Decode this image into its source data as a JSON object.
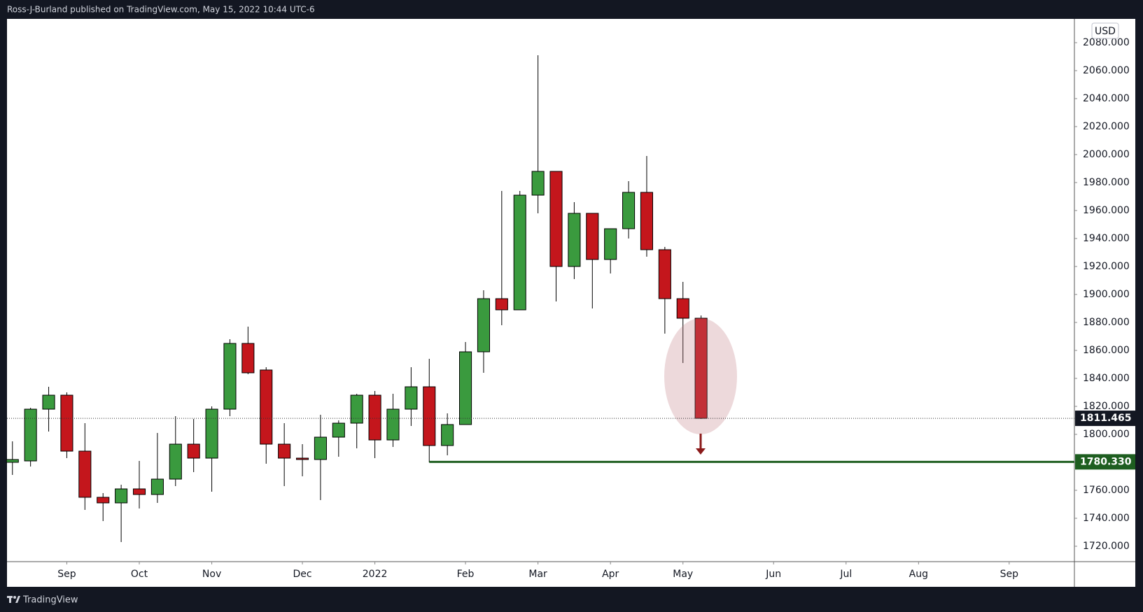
{
  "chart_data": {
    "type": "candlestick",
    "header": "Ross-J-Burland published on TradingView.com, May 15, 2022 10:44 UTC-6",
    "brand": "TradingView",
    "currency": "USD",
    "x": [
      0,
      1,
      2,
      3,
      4,
      5,
      6,
      7,
      8,
      9,
      10,
      11,
      12,
      13,
      14,
      15,
      16,
      17,
      18,
      19,
      20,
      21,
      22,
      23,
      24,
      25,
      26,
      27,
      28,
      29,
      30,
      31,
      32,
      33,
      34,
      35,
      36,
      37,
      38
    ],
    "open": [
      1780,
      1781,
      1818,
      1828,
      1788,
      1755,
      1751,
      1761,
      1757,
      1768,
      1793,
      1783,
      1818,
      1865,
      1846,
      1793,
      1783,
      1782,
      1798,
      1808,
      1828,
      1796,
      1818,
      1834,
      1792,
      1807,
      1859,
      1897,
      1889,
      1971,
      1988,
      1920,
      1958,
      1925,
      1947,
      1973,
      1932,
      1897,
      1883
    ],
    "high": [
      1795,
      1819,
      1834,
      1830,
      1808,
      1758,
      1764,
      1781,
      1801,
      1813,
      1811,
      1820,
      1868,
      1877,
      1848,
      1808,
      1793,
      1814,
      1810,
      1829,
      1831,
      1829,
      1848,
      1854,
      1815,
      1866,
      1903,
      1974,
      1974,
      2071,
      1988,
      1966,
      1958,
      1947,
      1981,
      1999,
      1934,
      1909,
      1885
    ],
    "low": [
      1771,
      1777,
      1802,
      1783,
      1746,
      1738,
      1723,
      1747,
      1751,
      1763,
      1773,
      1759,
      1813,
      1843,
      1779,
      1763,
      1770,
      1753,
      1784,
      1790,
      1783,
      1791,
      1806,
      1780,
      1785,
      1807,
      1844,
      1878,
      1889,
      1958,
      1895,
      1911,
      1890,
      1915,
      1940,
      1927,
      1872,
      1851,
      1811
    ],
    "close": [
      1782,
      1818,
      1828,
      1788,
      1755,
      1751,
      1761,
      1757,
      1768,
      1793,
      1783,
      1818,
      1865,
      1844,
      1793,
      1783,
      1782,
      1798,
      1808,
      1828,
      1796,
      1818,
      1834,
      1792,
      1807,
      1859,
      1897,
      1889,
      1971,
      1988,
      1920,
      1958,
      1925,
      1947,
      1973,
      1932,
      1897,
      1883,
      1811.465
    ],
    "up_color": "#3a9a3e",
    "down_color": "#c4161c",
    "xlim": [
      -0.3,
      58.6
    ],
    "xticks": [
      {
        "value": 3,
        "label": "Sep"
      },
      {
        "value": 7,
        "label": "Oct"
      },
      {
        "value": 11,
        "label": "Nov"
      },
      {
        "value": 16,
        "label": "Dec"
      },
      {
        "value": 20,
        "label": "2022"
      },
      {
        "value": 25,
        "label": "Feb"
      },
      {
        "value": 29,
        "label": "Mar"
      },
      {
        "value": 33,
        "label": "Apr"
      },
      {
        "value": 37,
        "label": "May"
      },
      {
        "value": 42,
        "label": "Jun"
      },
      {
        "value": 46,
        "label": "Jul"
      },
      {
        "value": 50,
        "label": "Aug"
      },
      {
        "value": 55,
        "label": "Sep"
      }
    ],
    "ylim": [
      1709,
      2097
    ],
    "yticks": [
      {
        "value": 1720,
        "label": "1720.000"
      },
      {
        "value": 1740,
        "label": "1740.000"
      },
      {
        "value": 1760,
        "label": "1760.000"
      },
      {
        "value": 1780,
        "label": "1780.000"
      },
      {
        "value": 1800,
        "label": "1800.000"
      },
      {
        "value": 1820,
        "label": "1820.000"
      },
      {
        "value": 1840,
        "label": "1840.000"
      },
      {
        "value": 1860,
        "label": "1860.000"
      },
      {
        "value": 1880,
        "label": "1880.000"
      },
      {
        "value": 1900,
        "label": "1900.000"
      },
      {
        "value": 1920,
        "label": "1920.000"
      },
      {
        "value": 1940,
        "label": "1940.000"
      },
      {
        "value": 1960,
        "label": "1960.000"
      },
      {
        "value": 1980,
        "label": "1980.000"
      },
      {
        "value": 2000,
        "label": "2000.000"
      },
      {
        "value": 2020,
        "label": "2020.000"
      },
      {
        "value": 2040,
        "label": "2040.000"
      },
      {
        "value": 2060,
        "label": "2060.000"
      },
      {
        "value": 2080,
        "label": "2080.000"
      }
    ],
    "last_price": {
      "value": 1811.465,
      "label": "1811.465"
    },
    "support_line": {
      "value": 1780.33,
      "label": "1780.330",
      "x_start": 23,
      "color": "#1e5e20"
    }
  }
}
